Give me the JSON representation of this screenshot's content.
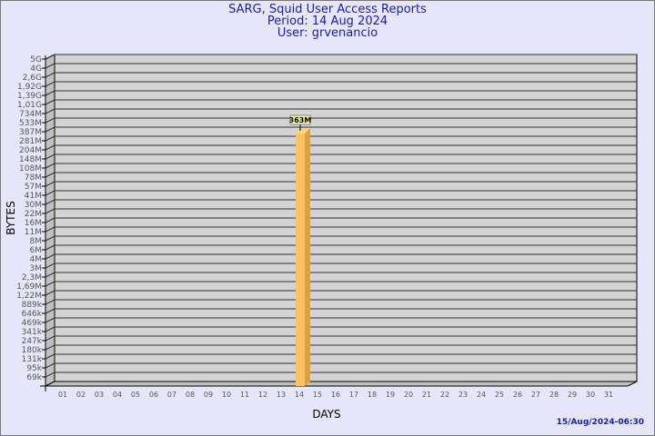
{
  "header": {
    "title": "SARG, Squid User Access Reports",
    "period": "Period: 14 Aug 2024",
    "user": "User: grvenancio"
  },
  "timestamp": "15/Aug/2024-06:30",
  "chart_data": {
    "type": "bar",
    "xlabel": "DAYS",
    "ylabel": "BYTES",
    "y_scale": "log",
    "y_tick_labels": [
      "5G",
      "4G",
      "2,6G",
      "1,92G",
      "1,39G",
      "1,01G",
      "734M",
      "533M",
      "387M",
      "281M",
      "204M",
      "148M",
      "108M",
      "78M",
      "57M",
      "41M",
      "30M",
      "22M",
      "16M",
      "11M",
      "8M",
      "6M",
      "4M",
      "3M",
      "2,3M",
      "1,69M",
      "1,22M",
      "889k",
      "646k",
      "469k",
      "341k",
      "247k",
      "180k",
      "131k",
      "95k",
      "69k"
    ],
    "categories": [
      "01",
      "02",
      "03",
      "04",
      "05",
      "06",
      "07",
      "08",
      "09",
      "10",
      "11",
      "12",
      "13",
      "14",
      "15",
      "16",
      "17",
      "18",
      "19",
      "20",
      "21",
      "22",
      "23",
      "24",
      "25",
      "26",
      "27",
      "28",
      "29",
      "30",
      "31"
    ],
    "bars": [
      {
        "category": "14",
        "value_label": "363M",
        "value_bytes": 363000000
      }
    ],
    "bar_color": "#f9c264",
    "grid": true
  }
}
